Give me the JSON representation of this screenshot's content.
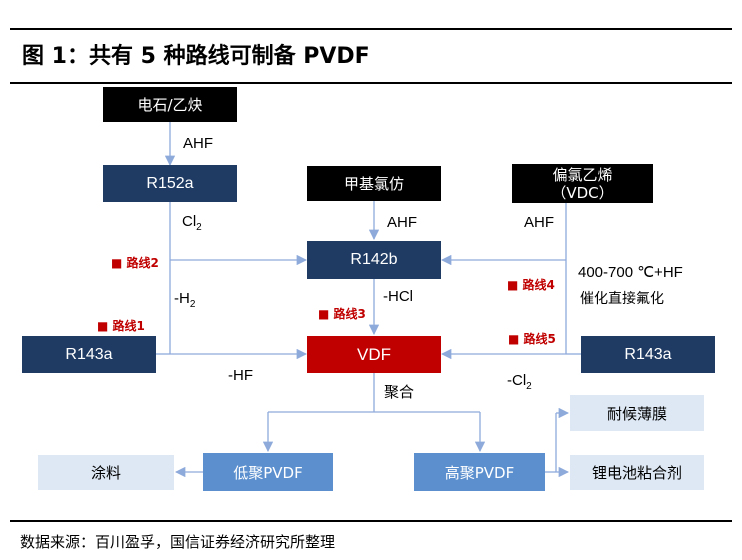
{
  "title": "图 1：共有 5 种路线可制备 PVDF",
  "nodes": {
    "calcium_carbide": "电石/乙炔",
    "r152a": "R152a",
    "methyl_chloroform": "甲基氯仿",
    "vdc_line1": "偏氯乙烯",
    "vdc_line2": "（VDC）",
    "r142b": "R142b",
    "r143a_left": "R143a",
    "vdf": "VDF",
    "r143a_right": "R143a",
    "coating": "涂料",
    "low_pvdf": "低聚PVDF",
    "high_pvdf": "高聚PVDF",
    "film": "耐候薄膜",
    "binder": "锂电池粘合剂"
  },
  "labels": {
    "ahf_top": "AHF",
    "cl2_main": "Cl",
    "cl2_sub": "2",
    "ahf_mid": "AHF",
    "ahf_right": "AHF",
    "h2_main": "-H",
    "h2_sub": "2",
    "hcl": "-HCl",
    "hf": "-HF",
    "cl2b_main": "-Cl",
    "cl2b_sub": "2",
    "temp": "400-700 ℃+HF",
    "catalytic": "催化直接氟化",
    "polymerize": "聚合"
  },
  "routes": {
    "r1": "■ 路线1",
    "r2": "■ 路线2",
    "r3": "■ 路线3",
    "r4": "■ 路线4",
    "r5": "■ 路线5"
  },
  "source": "数据来源：百川盈孚，国信证券经济研究所整理",
  "colors": {
    "navy": "#1f3b63",
    "red": "#c00000",
    "blue": "#5b8fce",
    "light": "#dde8f4",
    "line": "#8eaadb"
  }
}
